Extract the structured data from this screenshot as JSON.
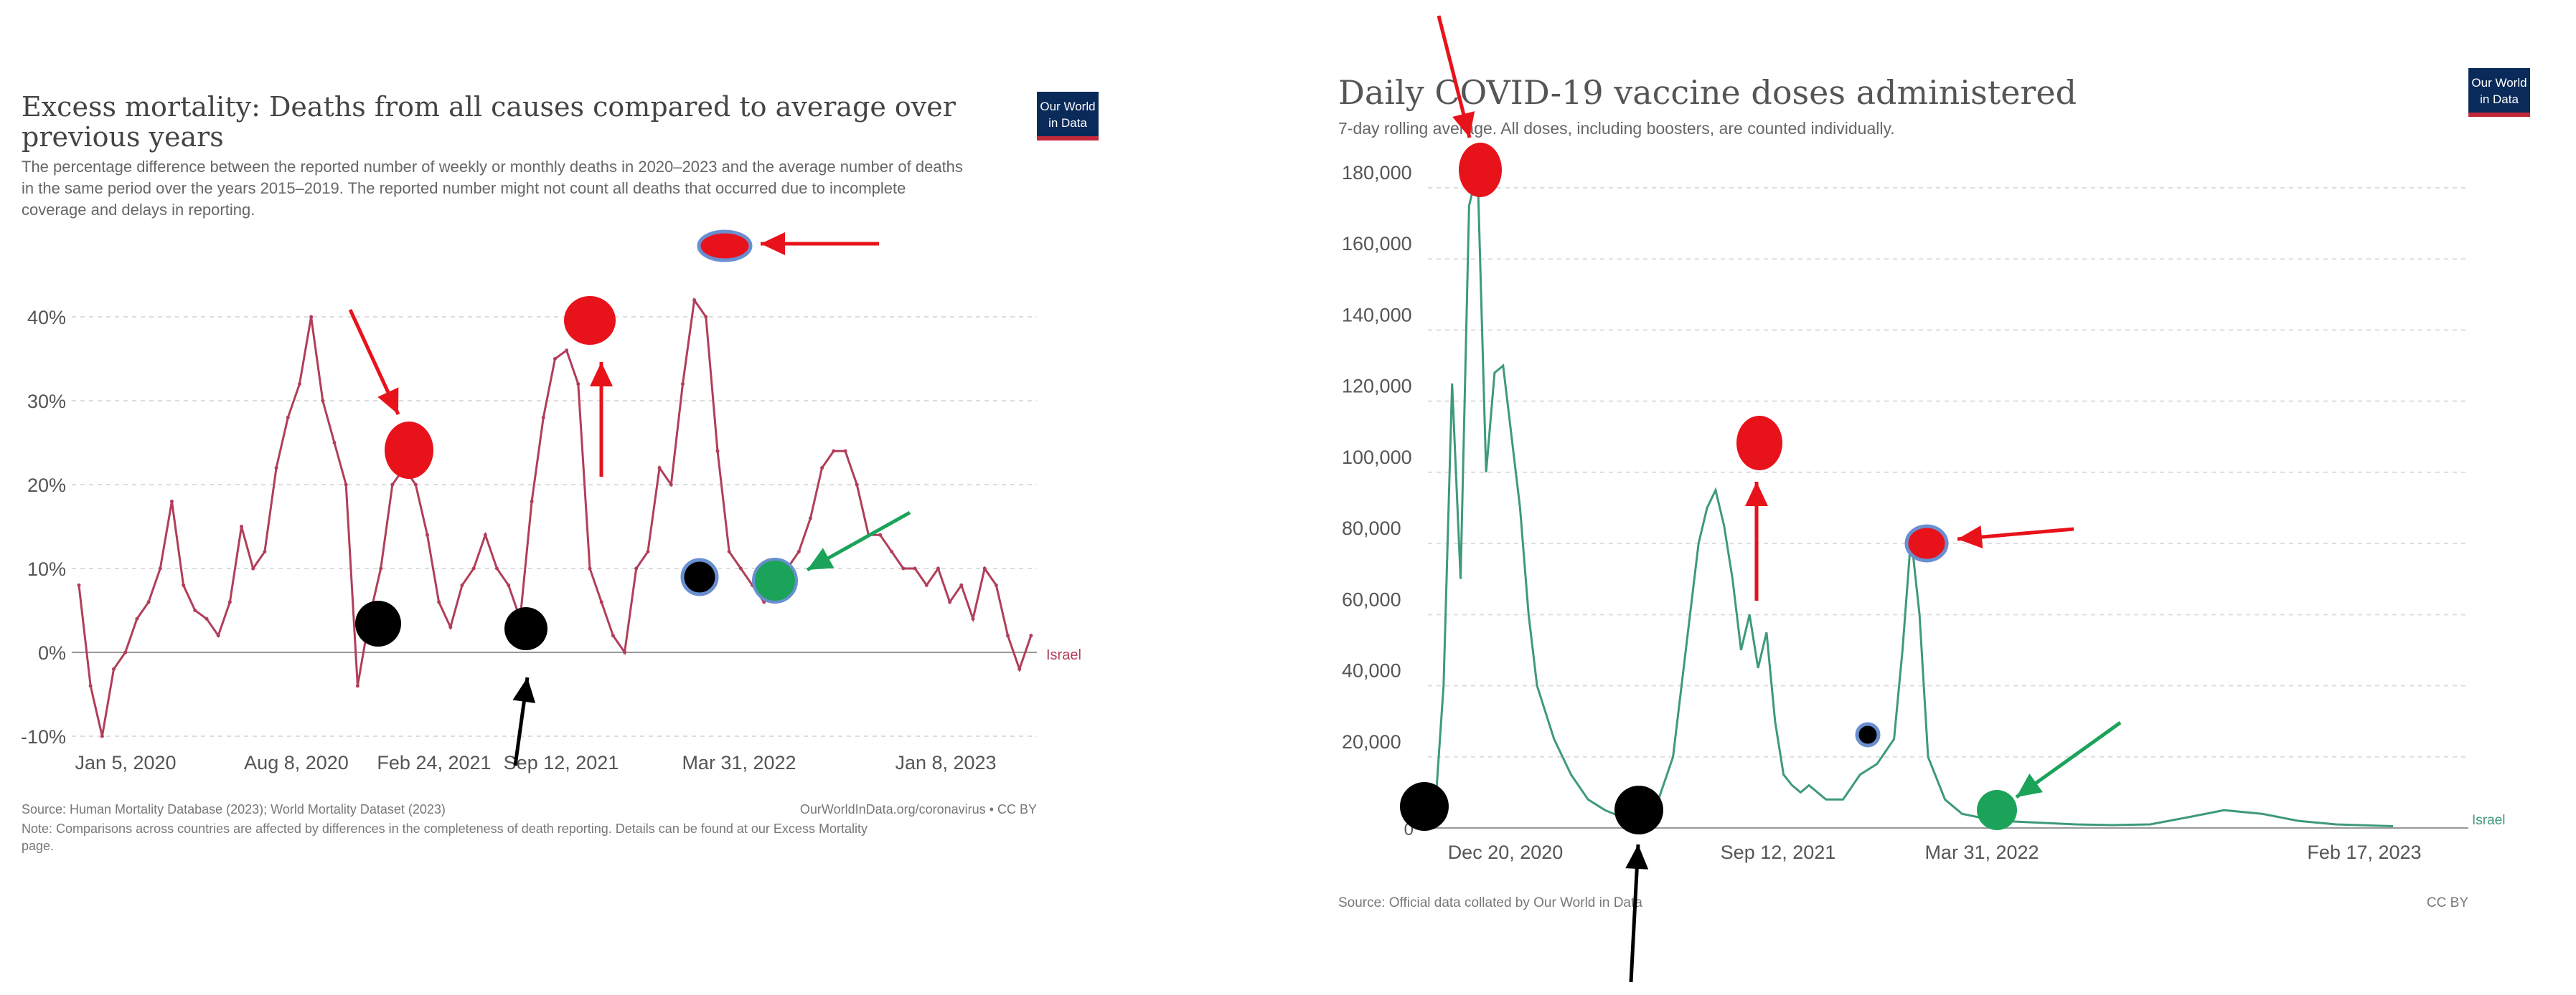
{
  "chart_data": [
    {
      "type": "line",
      "title": "Excess mortality: Deaths from all causes compared to average over previous years",
      "subtitle": "The percentage difference between the reported number of weekly or monthly deaths in 2020–2023 and the average number of deaths in the same period over the years 2015–2019. The reported number might not count all deaths that occurred due to incomplete coverage and delays in reporting.",
      "logo": "Our World in Data",
      "y_ticks": [
        "-10%",
        "0%",
        "10%",
        "20%",
        "30%",
        "40%"
      ],
      "x_ticks": [
        "Jan 5, 2020",
        "Aug 8, 2020",
        "Feb 24, 2021",
        "Sep 12, 2021",
        "Mar 31, 2022",
        "Jan 8, 2023"
      ],
      "ylim": [
        -10,
        50
      ],
      "xlim": [
        "2020-01-05",
        "2023-03-05"
      ],
      "grid": true,
      "series": [
        {
          "name": "Israel",
          "color": "#b13e5a",
          "x": [
            "2020-01-05",
            "2020-01-19",
            "2020-02-02",
            "2020-02-16",
            "2020-03-01",
            "2020-03-15",
            "2020-03-29",
            "2020-04-12",
            "2020-04-26",
            "2020-05-10",
            "2020-05-24",
            "2020-06-07",
            "2020-06-21",
            "2020-07-05",
            "2020-07-19",
            "2020-08-02",
            "2020-08-16",
            "2020-08-30",
            "2020-09-13",
            "2020-09-27",
            "2020-10-11",
            "2020-10-25",
            "2020-11-08",
            "2020-11-22",
            "2020-12-06",
            "2020-12-20",
            "2021-01-03",
            "2021-01-17",
            "2021-01-31",
            "2021-02-14",
            "2021-02-28",
            "2021-03-14",
            "2021-03-28",
            "2021-04-11",
            "2021-04-25",
            "2021-05-09",
            "2021-05-23",
            "2021-06-06",
            "2021-06-20",
            "2021-07-04",
            "2021-07-18",
            "2021-08-01",
            "2021-08-15",
            "2021-08-29",
            "2021-09-12",
            "2021-09-26",
            "2021-10-10",
            "2021-10-24",
            "2021-11-07",
            "2021-11-21",
            "2021-12-05",
            "2021-12-19",
            "2022-01-02",
            "2022-01-16",
            "2022-01-30",
            "2022-02-13",
            "2022-02-27",
            "2022-03-13",
            "2022-03-27",
            "2022-04-10",
            "2022-04-24",
            "2022-05-08",
            "2022-05-22",
            "2022-06-05",
            "2022-06-19",
            "2022-07-03",
            "2022-07-17",
            "2022-07-31",
            "2022-08-14",
            "2022-08-28",
            "2022-09-11",
            "2022-09-25",
            "2022-10-09",
            "2022-10-23",
            "2022-11-06",
            "2022-11-20",
            "2022-12-04",
            "2022-12-18",
            "2023-01-01",
            "2023-01-15",
            "2023-01-29",
            "2023-02-12",
            "2023-02-26"
          ],
          "values": [
            8,
            -4,
            -10,
            -2,
            0,
            4,
            6,
            10,
            18,
            8,
            5,
            4,
            2,
            6,
            15,
            10,
            12,
            22,
            28,
            32,
            40,
            30,
            25,
            20,
            -4,
            4,
            10,
            20,
            22,
            20,
            14,
            6,
            3,
            8,
            10,
            14,
            10,
            8,
            4,
            18,
            28,
            35,
            36,
            32,
            10,
            6,
            2,
            0,
            10,
            12,
            22,
            20,
            32,
            42,
            40,
            24,
            12,
            10,
            8,
            6,
            8,
            10,
            12,
            16,
            22,
            24,
            24,
            20,
            14,
            14,
            12,
            10,
            10,
            8,
            10,
            6,
            8,
            4,
            10,
            8,
            2,
            -2,
            2
          ]
        }
      ],
      "annotations": [
        "Israel"
      ],
      "source": "Source: Human Mortality Database (2023); World Mortality Dataset (2023)",
      "license": "OurWorldInData.org/coronavirus • CC BY",
      "note": "Note: Comparisons across countries are affected by differences in the completeness of death reporting. Details can be found at our Excess Mortality page."
    },
    {
      "type": "line",
      "title": "Daily COVID-19 vaccine doses administered",
      "subtitle": "7-day rolling average. All doses, including boosters, are counted individually.",
      "logo": "Our World in Data",
      "y_ticks": [
        "0",
        "20,000",
        "40,000",
        "60,000",
        "80,000",
        "100,000",
        "120,000",
        "140,000",
        "160,000",
        "180,000"
      ],
      "x_ticks": [
        "Dec 20, 2020",
        "Sep 12, 2021",
        "Mar 31, 2022",
        "Feb 17, 2023"
      ],
      "ylim": [
        0,
        190000
      ],
      "xlim": [
        "2020-12-20",
        "2023-02-17"
      ],
      "grid": true,
      "series": [
        {
          "name": "Israel",
          "color": "#3e9a77",
          "x": [
            "2020-12-20",
            "2020-12-27",
            "2021-01-03",
            "2021-01-10",
            "2021-01-17",
            "2021-01-24",
            "2021-01-31",
            "2021-02-07",
            "2021-02-14",
            "2021-02-21",
            "2021-02-28",
            "2021-03-07",
            "2021-03-14",
            "2021-03-28",
            "2021-04-11",
            "2021-04-25",
            "2021-05-09",
            "2021-05-23",
            "2021-06-06",
            "2021-06-20",
            "2021-07-04",
            "2021-07-18",
            "2021-07-25",
            "2021-08-01",
            "2021-08-08",
            "2021-08-15",
            "2021-08-22",
            "2021-08-29",
            "2021-09-05",
            "2021-09-12",
            "2021-09-19",
            "2021-09-26",
            "2021-10-03",
            "2021-10-10",
            "2021-10-17",
            "2021-10-24",
            "2021-11-07",
            "2021-11-21",
            "2021-12-05",
            "2021-12-19",
            "2022-01-02",
            "2022-01-09",
            "2022-01-16",
            "2022-01-23",
            "2022-01-30",
            "2022-02-13",
            "2022-02-27",
            "2022-03-13",
            "2022-03-31",
            "2022-05-01",
            "2022-06-01",
            "2022-07-01",
            "2022-08-01",
            "2022-09-01",
            "2022-10-01",
            "2022-11-01",
            "2022-12-01",
            "2023-01-01",
            "2023-02-17"
          ],
          "values": [
            5000,
            40000,
            125000,
            70000,
            175000,
            185000,
            100000,
            128000,
            130000,
            110000,
            90000,
            60000,
            40000,
            25000,
            15000,
            8000,
            5000,
            3000,
            4000,
            6000,
            20000,
            60000,
            80000,
            90000,
            95000,
            85000,
            70000,
            50000,
            60000,
            45000,
            55000,
            30000,
            15000,
            12000,
            10000,
            12000,
            8000,
            8000,
            15000,
            18000,
            25000,
            50000,
            82000,
            60000,
            20000,
            8000,
            4000,
            3000,
            2000,
            1500,
            1000,
            800,
            1000,
            3000,
            5000,
            4000,
            2000,
            1000,
            500
          ]
        }
      ],
      "annotations": [
        "Israel"
      ],
      "source": "Source: Official data collated by Our World in Data",
      "license": "CC BY"
    }
  ]
}
